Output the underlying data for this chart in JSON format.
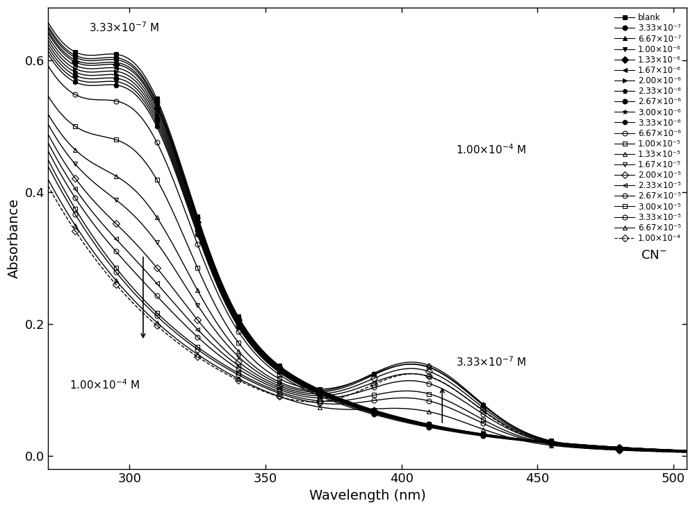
{
  "xlabel": "Wavelength (nm)",
  "ylabel": "Absorbance",
  "xlim": [
    270,
    505
  ],
  "ylim": [
    -0.02,
    0.68
  ],
  "x_ticks": [
    300,
    350,
    400,
    450,
    500
  ],
  "y_ticks": [
    0.0,
    0.2,
    0.4,
    0.6
  ],
  "background_color": "#ffffff",
  "linewidth": 1.0,
  "markersize": 5,
  "markers": [
    "s",
    "o",
    "^",
    "v",
    "D",
    "<",
    ">",
    "p",
    "o",
    "*",
    "h",
    "o",
    "s",
    "^",
    "v",
    "D",
    "<",
    "o",
    "s",
    "o",
    "^",
    "D"
  ],
  "fillstyles": [
    "full",
    "full",
    "full",
    "full",
    "full",
    "full",
    "full",
    "full",
    "full",
    "full",
    "full",
    "none",
    "none",
    "none",
    "none",
    "none",
    "none",
    "none",
    "none",
    "none",
    "none",
    "none"
  ],
  "legend_labels": [
    "blank",
    "3.33×10⁻⁷",
    "6.67×10⁻⁷",
    "1.00×10⁻⁶",
    "1.33×10⁻⁶",
    "1.67×10⁻⁶",
    "2.00×10⁻⁶",
    "2.33×10⁻⁶",
    "2.67×10⁻⁶",
    "3.00×10⁻⁶",
    "3.33×10⁻⁶",
    "6.67×10⁻⁶",
    "1.00×10⁻⁵",
    "1.33×10⁻⁵",
    "1.67×10⁻⁵",
    "2.00×10⁻⁵",
    "2.33×10⁻⁵",
    "2.67×10⁻⁵",
    "3.00×10⁻⁵",
    "3.33×10⁻⁵",
    "6.67×10⁻⁵",
    "1.00×10⁻⁴"
  ],
  "series_params": [
    [
      0.62,
      0.58,
      0.0
    ],
    [
      0.615,
      0.575,
      0.0
    ],
    [
      0.612,
      0.572,
      0.0
    ],
    [
      0.608,
      0.568,
      0.0
    ],
    [
      0.605,
      0.565,
      0.0
    ],
    [
      0.6,
      0.56,
      0.0
    ],
    [
      0.595,
      0.555,
      0.0
    ],
    [
      0.59,
      0.55,
      0.0
    ],
    [
      0.585,
      0.545,
      0.0
    ],
    [
      0.58,
      0.54,
      0.0
    ],
    [
      0.575,
      0.535,
      0.0
    ],
    [
      0.56,
      0.51,
      0.0
    ],
    [
      0.52,
      0.45,
      0.095
    ],
    [
      0.5,
      0.39,
      0.1
    ],
    [
      0.49,
      0.35,
      0.098
    ],
    [
      0.48,
      0.31,
      0.092
    ],
    [
      0.47,
      0.285,
      0.085
    ],
    [
      0.46,
      0.265,
      0.075
    ],
    [
      0.45,
      0.235,
      0.06
    ],
    [
      0.44,
      0.215,
      0.05
    ],
    [
      0.42,
      0.175,
      0.035
    ],
    [
      0.41,
      0.15,
      0.09
    ]
  ],
  "linestyles": [
    "-",
    "-",
    "-",
    "-",
    "-",
    "-",
    "-",
    "-",
    "-",
    "-",
    "-",
    "-",
    "-",
    "-",
    "-",
    "-",
    "-",
    "-",
    "-",
    "-",
    "-",
    "--"
  ]
}
